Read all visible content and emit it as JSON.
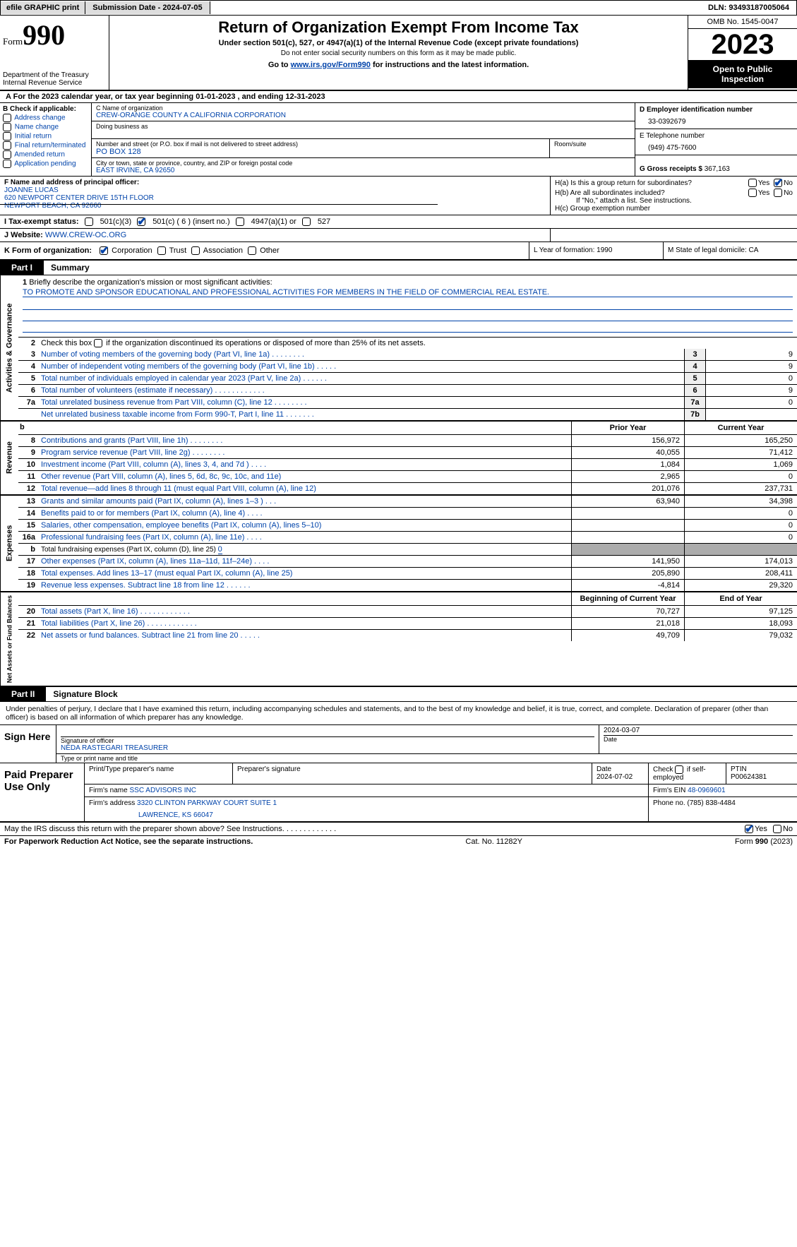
{
  "topbar": {
    "efile_btn": "efile GRAPHIC print",
    "submission": "Submission Date - 2024-07-05",
    "dln": "DLN: 93493187005064"
  },
  "header": {
    "form_label": "Form",
    "form_number": "990",
    "dept": "Department of the Treasury Internal Revenue Service",
    "title": "Return of Organization Exempt From Income Tax",
    "sub1": "Under section 501(c), 527, or 4947(a)(1) of the Internal Revenue Code (except private foundations)",
    "sub2": "Do not enter social security numbers on this form as it may be made public.",
    "sub3_pre": "Go to ",
    "sub3_link": "www.irs.gov/Form990",
    "sub3_post": " for instructions and the latest information.",
    "omb": "OMB No. 1545-0047",
    "year": "2023",
    "open": "Open to Public Inspection"
  },
  "taxyear": "For the 2023 calendar year, or tax year beginning 01-01-2023    , and ending 12-31-2023",
  "box_b": {
    "label": "B Check if applicable:",
    "items": [
      "Address change",
      "Name change",
      "Initial return",
      "Final return/terminated",
      "Amended return",
      "Application pending"
    ]
  },
  "box_c": {
    "name_label": "C Name of organization",
    "name": "CREW-ORANGE COUNTY A CALIFORNIA CORPORATION",
    "dba_label": "Doing business as",
    "street_label": "Number and street (or P.O. box if mail is not delivered to street address)",
    "room_label": "Room/suite",
    "street": "PO BOX 128",
    "city_label": "City or town, state or province, country, and ZIP or foreign postal code",
    "city": "EAST IRVINE, CA  92650"
  },
  "box_d": {
    "label": "D Employer identification number",
    "val": "33-0392679"
  },
  "box_e": {
    "label": "E Telephone number",
    "val": "(949) 475-7600"
  },
  "box_g": {
    "label": "G Gross receipts $",
    "val": "367,163"
  },
  "box_f": {
    "label": "F  Name and address of principal officer:",
    "name": "JOANNE LUCAS",
    "addr1": "620 NEWPORT CENTER DRIVE 15TH FLOOR",
    "addr2": "NEWPORT BEACH, CA  92660"
  },
  "box_h": {
    "a": "H(a)  Is this a group return for subordinates?",
    "b": "H(b)  Are all subordinates included?",
    "b_note": "If \"No,\" attach a list. See instructions.",
    "c": "H(c)  Group exemption number"
  },
  "tax_exempt": {
    "label": "I   Tax-exempt status:",
    "c3": "501(c)(3)",
    "c_other": "501(c) ( 6 ) (insert no.)",
    "a4947": "4947(a)(1) or",
    "s527": "527"
  },
  "website": {
    "label": "J   Website:",
    "val": "WWW.CREW-OC.ORG"
  },
  "row_k": {
    "label": "K Form of organization:",
    "opts": [
      "Corporation",
      "Trust",
      "Association",
      "Other"
    ],
    "l": "L Year of formation: 1990",
    "m": "M State of legal domicile: CA"
  },
  "part1": {
    "tab": "Part I",
    "title": "Summary"
  },
  "mission": {
    "q": "1  Briefly describe the organization's mission or most significant activities:",
    "a": "TO PROMOTE AND SPONSOR EDUCATIONAL AND PROFESSIONAL ACTIVITIES FOR MEMBERS IN THE FIELD OF COMMERCIAL REAL ESTATE."
  },
  "line2": "Check this box      if the organization discontinued its operations or disposed of more than 25% of its net assets.",
  "gov_lines": [
    {
      "n": "3",
      "t": "Number of voting members of the governing body (Part VI, line 1a)   .    .    .    .    .    .    .    .",
      "box": "3",
      "v": "9"
    },
    {
      "n": "4",
      "t": "Number of independent voting members of the governing body (Part VI, line 1b)   .    .    .    .    .",
      "box": "4",
      "v": "9"
    },
    {
      "n": "5",
      "t": "Total number of individuals employed in calendar year 2023 (Part V, line 2a)   .    .    .    .    .    .",
      "box": "5",
      "v": "0"
    },
    {
      "n": "6",
      "t": "Total number of volunteers (estimate if necessary)   .    .    .    .    .    .    .    .    .    .    .    .",
      "box": "6",
      "v": "9"
    },
    {
      "n": "7a",
      "t": "Total unrelated business revenue from Part VIII, column (C), line 12   .    .    .    .    .    .    .    .",
      "box": "7a",
      "v": "0"
    },
    {
      "n": "",
      "t": "Net unrelated business taxable income from Form 990-T, Part I, line 11   .    .    .    .    .    .    .",
      "box": "7b",
      "v": ""
    }
  ],
  "rev_headers": {
    "prior": "Prior Year",
    "current": "Current Year"
  },
  "revenue": [
    {
      "n": "8",
      "t": "Contributions and grants (Part VIII, line 1h)    .    .    .    .    .    .    .    .",
      "p": "156,972",
      "c": "165,250"
    },
    {
      "n": "9",
      "t": "Program service revenue (Part VIII, line 2g)    .    .    .    .    .    .    .    .",
      "p": "40,055",
      "c": "71,412"
    },
    {
      "n": "10",
      "t": "Investment income (Part VIII, column (A), lines 3, 4, and 7d )   .    .    .    .",
      "p": "1,084",
      "c": "1,069"
    },
    {
      "n": "11",
      "t": "Other revenue (Part VIII, column (A), lines 5, 6d, 8c, 9c, 10c, and 11e)",
      "p": "2,965",
      "c": "0"
    },
    {
      "n": "12",
      "t": "Total revenue—add lines 8 through 11 (must equal Part VIII, column (A), line 12)",
      "p": "201,076",
      "c": "237,731"
    }
  ],
  "expenses": [
    {
      "n": "13",
      "t": "Grants and similar amounts paid (Part IX, column (A), lines 1–3 )    .    .    .",
      "p": "63,940",
      "c": "34,398"
    },
    {
      "n": "14",
      "t": "Benefits paid to or for members (Part IX, column (A), line 4)    .    .    .    .",
      "p": "",
      "c": "0"
    },
    {
      "n": "15",
      "t": "Salaries, other compensation, employee benefits (Part IX, column (A), lines 5–10)",
      "p": "",
      "c": "0"
    },
    {
      "n": "16a",
      "t": "Professional fundraising fees (Part IX, column (A), line 11e)    .    .    .    .",
      "p": "",
      "c": "0"
    }
  ],
  "line16b": {
    "n": "b",
    "t": "Total fundraising expenses (Part IX, column (D), line 25) 0"
  },
  "expenses2": [
    {
      "n": "17",
      "t": "Other expenses (Part IX, column (A), lines 11a–11d, 11f–24e)   .    .    .    .",
      "p": "141,950",
      "c": "174,013"
    },
    {
      "n": "18",
      "t": "Total expenses. Add lines 13–17 (must equal Part IX, column (A), line 25)",
      "p": "205,890",
      "c": "208,411"
    },
    {
      "n": "19",
      "t": "Revenue less expenses. Subtract line 18 from line 12   .    .    .    .    .    .",
      "p": "-4,814",
      "c": "29,320"
    }
  ],
  "na_headers": {
    "begin": "Beginning of Current Year",
    "end": "End of Year"
  },
  "netassets": [
    {
      "n": "20",
      "t": "Total assets (Part X, line 16)    .    .    .    .    .    .    .    .    .    .    .    .",
      "p": "70,727",
      "c": "97,125"
    },
    {
      "n": "21",
      "t": "Total liabilities (Part X, line 26)    .    .    .    .    .    .    .    .    .    .    .    .",
      "p": "21,018",
      "c": "18,093"
    },
    {
      "n": "22",
      "t": "Net assets or fund balances. Subtract line 21 from line 20   .    .    .    .    .",
      "p": "49,709",
      "c": "79,032"
    }
  ],
  "part2": {
    "tab": "Part II",
    "title": "Signature Block"
  },
  "perjury": "Under penalties of perjury, I declare that I have examined this return, including accompanying schedules and statements, and to the best of my knowledge and belief, it is true, correct, and complete. Declaration of preparer (other than officer) is based on all information of which preparer has any knowledge.",
  "sign": {
    "here": "Sign Here",
    "date_val": "2024-03-07",
    "sig_label": "Signature of officer",
    "officer": "NEDA RASTEGARI  TREASURER",
    "name_label": "Type or print name and title",
    "date_label": "Date"
  },
  "paid": {
    "label": "Paid Preparer Use Only",
    "h_name": "Print/Type preparer's name",
    "h_sig": "Preparer's signature",
    "h_date": "Date",
    "date": "2024-07-02",
    "h_self": "Check         if self-employed",
    "h_ptin": "PTIN",
    "ptin": "P00624381",
    "firm_name_l": "Firm's name",
    "firm_name": "SSC ADVISORS INC",
    "firm_ein_l": "Firm's EIN",
    "firm_ein": "48-0969601",
    "firm_addr_l": "Firm's address",
    "firm_addr1": "3320 CLINTON PARKWAY COURT SUITE 1",
    "firm_addr2": "LAWRENCE, KS  66047",
    "phone_l": "Phone no.",
    "phone": "(785) 838-4484"
  },
  "discuss": "May the IRS discuss this return with the preparer shown above? See Instructions.    .    .    .    .    .    .    .    .    .    .    .    .",
  "footer": {
    "l": "For Paperwork Reduction Act Notice, see the separate instructions.",
    "m": "Cat. No. 11282Y",
    "r": "Form 990 (2023)"
  },
  "side_labels": {
    "gov": "Activities & Governance",
    "rev": "Revenue",
    "exp": "Expenses",
    "na": "Net Assets or Fund Balances"
  },
  "yes": "Yes",
  "no": "No"
}
